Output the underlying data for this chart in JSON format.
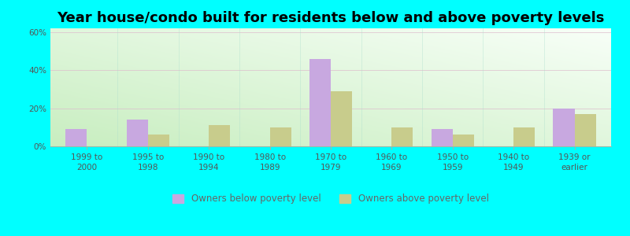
{
  "title": "Year house/condo built for residents below and above poverty levels",
  "categories": [
    "1999 to\n2000",
    "1995 to\n1998",
    "1990 to\n1994",
    "1980 to\n1989",
    "1970 to\n1979",
    "1960 to\n1969",
    "1950 to\n1959",
    "1940 to\n1949",
    "1939 or\nearlier"
  ],
  "below_poverty": [
    9,
    14,
    0,
    0,
    46,
    0,
    9,
    0,
    20
  ],
  "above_poverty": [
    0,
    6,
    11,
    10,
    29,
    10,
    6,
    10,
    17
  ],
  "below_color": "#c8a8e0",
  "above_color": "#c8cc8c",
  "border_color": "#00ffff",
  "ylim": [
    0,
    62
  ],
  "yticks": [
    0,
    20,
    40,
    60
  ],
  "ytick_labels": [
    "0%",
    "20%",
    "40%",
    "60%"
  ],
  "bar_width": 0.35,
  "legend_below_label": "Owners below poverty level",
  "legend_above_label": "Owners above poverty level",
  "title_fontsize": 13,
  "tick_fontsize": 7.5,
  "legend_fontsize": 8.5
}
